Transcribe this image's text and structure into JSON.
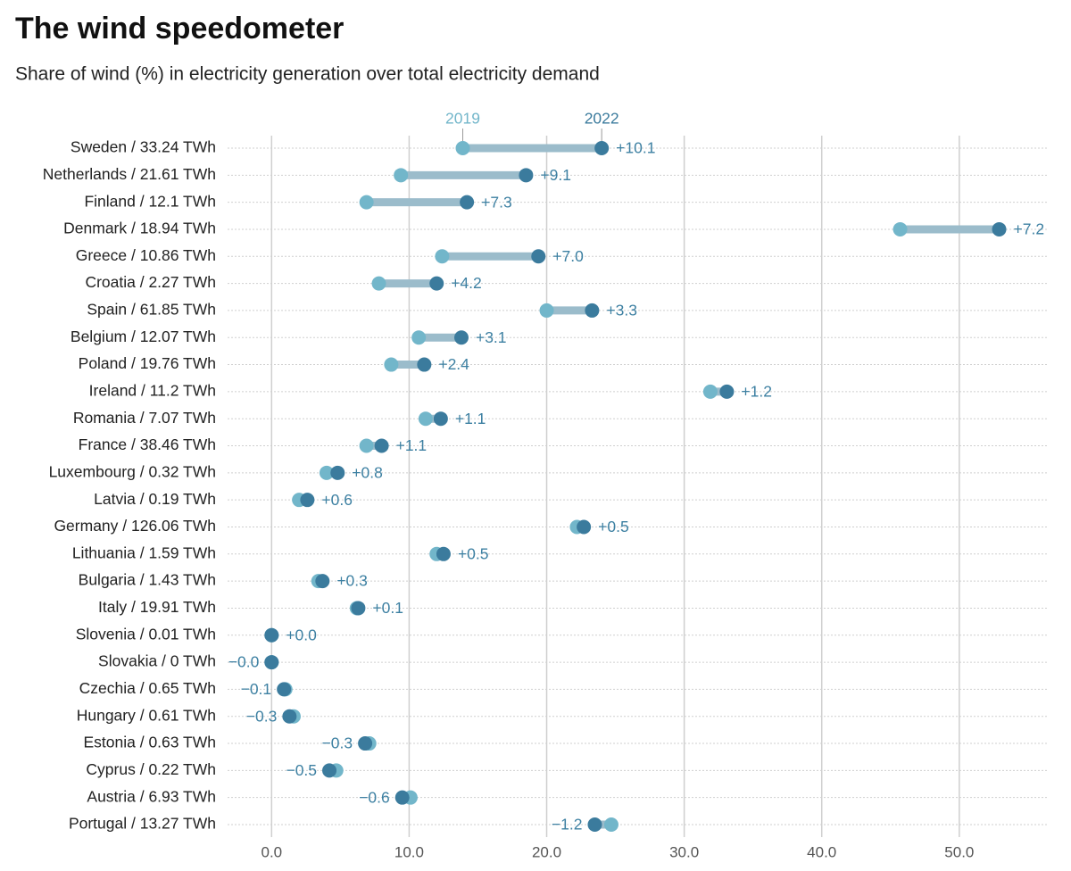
{
  "chart_data": {
    "type": "dumbbell",
    "title": "The wind speedometer",
    "subtitle": "Share of wind (%) in electricity generation over total electricity demand",
    "categories": [
      "Sweden / 33.24 TWh",
      "Netherlands / 21.61 TWh",
      "Finland / 12.1 TWh",
      "Denmark / 18.94 TWh",
      "Greece / 10.86 TWh",
      "Croatia / 2.27 TWh",
      "Spain / 61.85 TWh",
      "Belgium / 12.07 TWh",
      "Poland / 19.76 TWh",
      "Ireland / 11.2 TWh",
      "Romania / 7.07 TWh",
      "France / 38.46 TWh",
      "Luxembourg / 0.32 TWh",
      "Latvia / 0.19 TWh",
      "Germany / 126.06 TWh",
      "Lithuania / 1.59 TWh",
      "Bulgaria / 1.43 TWh",
      "Italy / 19.91 TWh",
      "Slovenia / 0.01 TWh",
      "Slovakia / 0 TWh",
      "Czechia / 0.65 TWh",
      "Hungary / 0.61 TWh",
      "Estonia / 0.63 TWh",
      "Cyprus / 0.22 TWh",
      "Austria / 6.93 TWh",
      "Portugal / 13.27 TWh"
    ],
    "series": [
      {
        "name": "2019",
        "color": "#72b6ca",
        "values": [
          13.9,
          9.4,
          6.9,
          45.7,
          12.4,
          7.8,
          20.0,
          10.7,
          8.7,
          31.9,
          11.2,
          6.9,
          4.0,
          2.0,
          22.2,
          12.0,
          3.4,
          6.2,
          0.0,
          0.0,
          1.0,
          1.6,
          7.1,
          4.7,
          10.1,
          24.7
        ]
      },
      {
        "name": "2022",
        "color": "#3b7b9d",
        "values": [
          24.0,
          18.5,
          14.2,
          52.9,
          19.4,
          12.0,
          23.3,
          13.8,
          11.1,
          33.1,
          12.3,
          8.0,
          4.8,
          2.6,
          22.7,
          12.5,
          3.7,
          6.3,
          0.0,
          0.0,
          0.9,
          1.3,
          6.8,
          4.2,
          9.5,
          23.5
        ]
      }
    ],
    "change": {
      "color": "#3d80a2",
      "values": [
        10.1,
        9.1,
        7.3,
        7.2,
        7.0,
        4.2,
        3.3,
        3.1,
        2.4,
        1.2,
        1.1,
        1.1,
        0.8,
        0.6,
        0.5,
        0.5,
        0.3,
        0.1,
        0.0,
        -0.0,
        -0.1,
        -0.3,
        -0.3,
        -0.5,
        -0.6,
        -1.2
      ],
      "value_labels": [
        "+10.1",
        "+9.1",
        "+7.3",
        "+7.2",
        "+7.0",
        "+4.2",
        "+3.3",
        "+3.1",
        "+2.4",
        "+1.2",
        "+1.1",
        "+1.1",
        "+0.8",
        "+0.6",
        "+0.5",
        "+0.5",
        "+0.3",
        "+0.1",
        "+0.0",
        "−0.0",
        "−0.1",
        "−0.3",
        "−0.3",
        "−0.5",
        "−0.6",
        "−1.2"
      ]
    },
    "connector_color": "#9bbccb",
    "xlim": [
      -3.2,
      56.5
    ],
    "xticks": [
      {
        "value": 0,
        "label": "0.0"
      },
      {
        "value": 10,
        "label": "10.0"
      },
      {
        "value": 20,
        "label": "20.0"
      },
      {
        "value": 30,
        "label": "30.0"
      },
      {
        "value": 40,
        "label": "40.0"
      },
      {
        "value": 50,
        "label": "50.0"
      }
    ],
    "grid": true
  }
}
